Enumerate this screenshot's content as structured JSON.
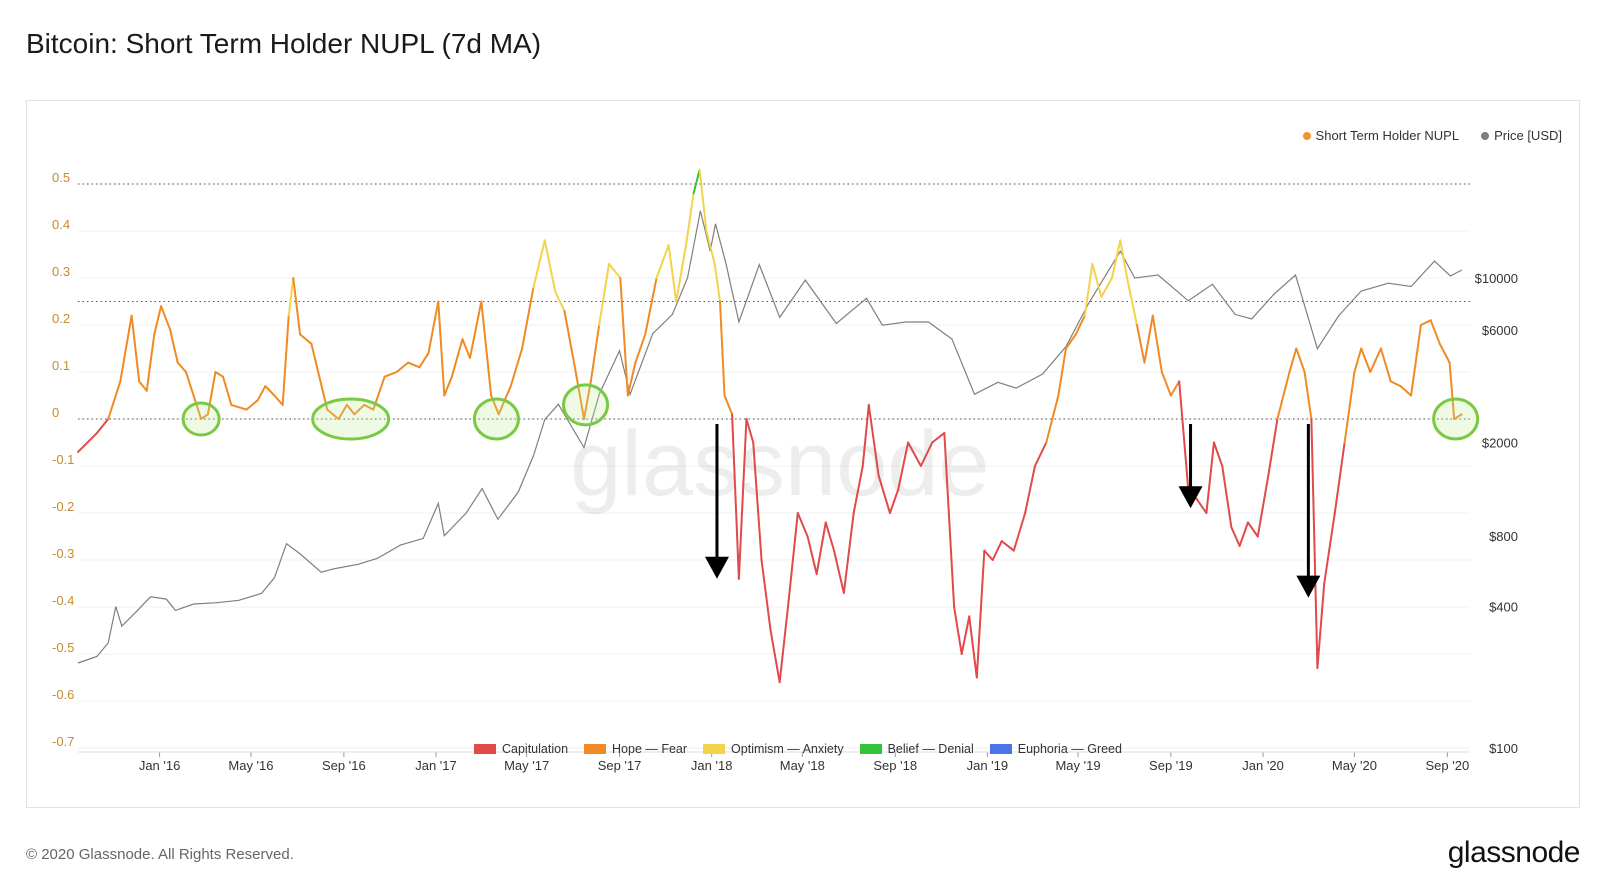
{
  "title": "Bitcoin: Short Term Holder NUPL (7d MA)",
  "footer": {
    "copyright": "© 2020 Glassnode. All Rights Reserved.",
    "brand": "glassnode"
  },
  "watermark": "glassnode",
  "legend_top": [
    {
      "label": "Short Term Holder NUPL",
      "color": "#f0932b"
    },
    {
      "label": "Price [USD]",
      "color": "#7f7f7f"
    }
  ],
  "legend_bottom": [
    {
      "label": "Capitulation",
      "color": "#e04a4a"
    },
    {
      "label": "Hope — Fear",
      "color": "#f08a24"
    },
    {
      "label": "Optimism — Anxiety",
      "color": "#f2d44c"
    },
    {
      "label": "Belief — Denial",
      "color": "#33c23a"
    },
    {
      "label": "Euphoria — Greed",
      "color": "#4a74e8"
    }
  ],
  "chart_data": {
    "type": "line",
    "x_ticks": [
      "Jan '16",
      "May '16",
      "Sep '16",
      "Jan '17",
      "May '17",
      "Sep '17",
      "Jan '18",
      "May '18",
      "Sep '18",
      "Jan '19",
      "May '19",
      "Sep '19",
      "Jan '20",
      "May '20",
      "Sep '20"
    ],
    "y_left_ticks": [
      "0.5",
      "0.4",
      "0.3",
      "0.2",
      "0.1",
      "0",
      "-0.1",
      "-0.2",
      "-0.3",
      "-0.4",
      "-0.5",
      "-0.6",
      "-0.7"
    ],
    "y_left_range": [
      -0.7,
      0.5
    ],
    "y_right_ticks": [
      "$10000",
      "$6000",
      "$2000",
      "$800",
      "$400",
      "$100"
    ],
    "y_right_scale": "log",
    "reference_lines": [
      0.5,
      0.25,
      0
    ],
    "x_range": [
      "2015-09-15",
      "2020-10-01"
    ],
    "series": [
      {
        "name": "Short Term Holder NUPL",
        "color_by_zone": true,
        "points": [
          [
            "2015-09-15",
            -0.07
          ],
          [
            "2015-10-10",
            -0.03
          ],
          [
            "2015-10-25",
            0.0
          ],
          [
            "2015-11-10",
            0.08
          ],
          [
            "2015-11-25",
            0.22
          ],
          [
            "2015-12-05",
            0.08
          ],
          [
            "2015-12-15",
            0.06
          ],
          [
            "2015-12-25",
            0.18
          ],
          [
            "2016-01-03",
            0.24
          ],
          [
            "2016-01-15",
            0.19
          ],
          [
            "2016-01-25",
            0.12
          ],
          [
            "2016-02-05",
            0.1
          ],
          [
            "2016-02-15",
            0.05
          ],
          [
            "2016-02-25",
            0.0
          ],
          [
            "2016-03-05",
            0.01
          ],
          [
            "2016-03-15",
            0.1
          ],
          [
            "2016-03-25",
            0.09
          ],
          [
            "2016-04-05",
            0.03
          ],
          [
            "2016-04-25",
            0.02
          ],
          [
            "2016-05-10",
            0.04
          ],
          [
            "2016-05-20",
            0.07
          ],
          [
            "2016-06-01",
            0.05
          ],
          [
            "2016-06-12",
            0.03
          ],
          [
            "2016-06-20",
            0.22
          ],
          [
            "2016-06-26",
            0.3
          ],
          [
            "2016-07-05",
            0.18
          ],
          [
            "2016-07-20",
            0.16
          ],
          [
            "2016-08-01",
            0.08
          ],
          [
            "2016-08-10",
            0.02
          ],
          [
            "2016-08-25",
            0.0
          ],
          [
            "2016-09-05",
            0.03
          ],
          [
            "2016-09-15",
            0.01
          ],
          [
            "2016-09-28",
            0.03
          ],
          [
            "2016-10-10",
            0.02
          ],
          [
            "2016-10-25",
            0.09
          ],
          [
            "2016-11-10",
            0.1
          ],
          [
            "2016-11-25",
            0.12
          ],
          [
            "2016-12-10",
            0.11
          ],
          [
            "2016-12-22",
            0.14
          ],
          [
            "2017-01-04",
            0.25
          ],
          [
            "2017-01-12",
            0.05
          ],
          [
            "2017-01-22",
            0.09
          ],
          [
            "2017-02-05",
            0.17
          ],
          [
            "2017-02-15",
            0.13
          ],
          [
            "2017-03-02",
            0.25
          ],
          [
            "2017-03-15",
            0.05
          ],
          [
            "2017-03-25",
            0.01
          ],
          [
            "2017-04-10",
            0.07
          ],
          [
            "2017-04-25",
            0.15
          ],
          [
            "2017-05-10",
            0.28
          ],
          [
            "2017-05-25",
            0.38
          ],
          [
            "2017-06-08",
            0.27
          ],
          [
            "2017-06-20",
            0.23
          ],
          [
            "2017-07-05",
            0.1
          ],
          [
            "2017-07-16",
            0.0
          ],
          [
            "2017-07-25",
            0.08
          ],
          [
            "2017-08-05",
            0.2
          ],
          [
            "2017-08-18",
            0.33
          ],
          [
            "2017-09-02",
            0.3
          ],
          [
            "2017-09-12",
            0.05
          ],
          [
            "2017-09-22",
            0.12
          ],
          [
            "2017-10-05",
            0.18
          ],
          [
            "2017-10-20",
            0.3
          ],
          [
            "2017-11-05",
            0.37
          ],
          [
            "2017-11-15",
            0.25
          ],
          [
            "2017-11-28",
            0.37
          ],
          [
            "2017-12-08",
            0.48
          ],
          [
            "2017-12-16",
            0.53
          ],
          [
            "2017-12-25",
            0.4
          ],
          [
            "2018-01-05",
            0.33
          ],
          [
            "2018-01-12",
            0.25
          ],
          [
            "2018-01-18",
            0.05
          ],
          [
            "2018-01-28",
            0.01
          ],
          [
            "2018-02-06",
            -0.34
          ],
          [
            "2018-02-16",
            0.0
          ],
          [
            "2018-02-25",
            -0.05
          ],
          [
            "2018-03-08",
            -0.3
          ],
          [
            "2018-03-20",
            -0.45
          ],
          [
            "2018-04-01",
            -0.56
          ],
          [
            "2018-04-12",
            -0.4
          ],
          [
            "2018-04-25",
            -0.2
          ],
          [
            "2018-05-08",
            -0.25
          ],
          [
            "2018-05-20",
            -0.33
          ],
          [
            "2018-06-01",
            -0.22
          ],
          [
            "2018-06-12",
            -0.28
          ],
          [
            "2018-06-25",
            -0.37
          ],
          [
            "2018-07-08",
            -0.2
          ],
          [
            "2018-07-20",
            -0.1
          ],
          [
            "2018-07-28",
            0.03
          ],
          [
            "2018-08-10",
            -0.12
          ],
          [
            "2018-08-25",
            -0.2
          ],
          [
            "2018-09-05",
            -0.15
          ],
          [
            "2018-09-18",
            -0.05
          ],
          [
            "2018-10-05",
            -0.1
          ],
          [
            "2018-10-20",
            -0.05
          ],
          [
            "2018-11-05",
            -0.03
          ],
          [
            "2018-11-18",
            -0.4
          ],
          [
            "2018-11-28",
            -0.5
          ],
          [
            "2018-12-08",
            -0.42
          ],
          [
            "2018-12-18",
            -0.55
          ],
          [
            "2018-12-28",
            -0.28
          ],
          [
            "2019-01-08",
            -0.3
          ],
          [
            "2019-01-20",
            -0.26
          ],
          [
            "2019-02-05",
            -0.28
          ],
          [
            "2019-02-20",
            -0.2
          ],
          [
            "2019-03-05",
            -0.1
          ],
          [
            "2019-03-20",
            -0.05
          ],
          [
            "2019-04-05",
            0.05
          ],
          [
            "2019-04-15",
            0.15
          ],
          [
            "2019-04-28",
            0.18
          ],
          [
            "2019-05-10",
            0.22
          ],
          [
            "2019-05-20",
            0.33
          ],
          [
            "2019-06-01",
            0.26
          ],
          [
            "2019-06-15",
            0.3
          ],
          [
            "2019-06-26",
            0.38
          ],
          [
            "2019-07-05",
            0.3
          ],
          [
            "2019-07-18",
            0.2
          ],
          [
            "2019-07-28",
            0.12
          ],
          [
            "2019-08-08",
            0.22
          ],
          [
            "2019-08-20",
            0.1
          ],
          [
            "2019-09-01",
            0.05
          ],
          [
            "2019-09-12",
            0.08
          ],
          [
            "2019-09-24",
            -0.15
          ],
          [
            "2019-10-05",
            -0.17
          ],
          [
            "2019-10-18",
            -0.2
          ],
          [
            "2019-10-28",
            -0.05
          ],
          [
            "2019-11-08",
            -0.1
          ],
          [
            "2019-11-20",
            -0.23
          ],
          [
            "2019-12-01",
            -0.27
          ],
          [
            "2019-12-12",
            -0.22
          ],
          [
            "2019-12-25",
            -0.25
          ],
          [
            "2020-01-08",
            -0.12
          ],
          [
            "2020-01-20",
            0.0
          ],
          [
            "2020-02-05",
            0.1
          ],
          [
            "2020-02-14",
            0.15
          ],
          [
            "2020-02-25",
            0.1
          ],
          [
            "2020-03-05",
            0.0
          ],
          [
            "2020-03-13",
            -0.53
          ],
          [
            "2020-03-22",
            -0.35
          ],
          [
            "2020-04-05",
            -0.2
          ],
          [
            "2020-04-18",
            -0.05
          ],
          [
            "2020-05-01",
            0.1
          ],
          [
            "2020-05-10",
            0.15
          ],
          [
            "2020-05-22",
            0.1
          ],
          [
            "2020-06-05",
            0.15
          ],
          [
            "2020-06-18",
            0.08
          ],
          [
            "2020-07-01",
            0.07
          ],
          [
            "2020-07-15",
            0.05
          ],
          [
            "2020-07-28",
            0.2
          ],
          [
            "2020-08-10",
            0.21
          ],
          [
            "2020-08-22",
            0.16
          ],
          [
            "2020-09-04",
            0.12
          ],
          [
            "2020-09-10",
            0.0
          ],
          [
            "2020-09-20",
            0.01
          ]
        ]
      },
      {
        "name": "Price [USD]",
        "color": "#7f7f7f",
        "points": [
          [
            "2015-09-15",
            230
          ],
          [
            "2015-10-10",
            245
          ],
          [
            "2015-10-25",
            280
          ],
          [
            "2015-11-04",
            400
          ],
          [
            "2015-11-12",
            330
          ],
          [
            "2015-12-01",
            380
          ],
          [
            "2015-12-20",
            440
          ],
          [
            "2016-01-10",
            430
          ],
          [
            "2016-01-22",
            385
          ],
          [
            "2016-02-15",
            410
          ],
          [
            "2016-03-15",
            415
          ],
          [
            "2016-04-15",
            425
          ],
          [
            "2016-05-15",
            455
          ],
          [
            "2016-06-01",
            530
          ],
          [
            "2016-06-17",
            740
          ],
          [
            "2016-07-05",
            670
          ],
          [
            "2016-08-02",
            560
          ],
          [
            "2016-08-20",
            580
          ],
          [
            "2016-09-20",
            605
          ],
          [
            "2016-10-15",
            640
          ],
          [
            "2016-11-15",
            730
          ],
          [
            "2016-12-15",
            780
          ],
          [
            "2017-01-04",
            1100
          ],
          [
            "2017-01-12",
            800
          ],
          [
            "2017-02-10",
            1000
          ],
          [
            "2017-03-03",
            1270
          ],
          [
            "2017-03-24",
            940
          ],
          [
            "2017-04-20",
            1230
          ],
          [
            "2017-05-10",
            1750
          ],
          [
            "2017-05-25",
            2500
          ],
          [
            "2017-06-12",
            2900
          ],
          [
            "2017-07-16",
            1900
          ],
          [
            "2017-08-05",
            3200
          ],
          [
            "2017-09-01",
            4900
          ],
          [
            "2017-09-15",
            3200
          ],
          [
            "2017-10-15",
            5800
          ],
          [
            "2017-11-10",
            7000
          ],
          [
            "2017-11-30",
            10000
          ],
          [
            "2017-12-17",
            19300
          ],
          [
            "2017-12-30",
            13000
          ],
          [
            "2018-01-06",
            17000
          ],
          [
            "2018-01-20",
            11500
          ],
          [
            "2018-02-06",
            6500
          ],
          [
            "2018-03-05",
            11400
          ],
          [
            "2018-04-01",
            6800
          ],
          [
            "2018-05-05",
            9800
          ],
          [
            "2018-06-15",
            6400
          ],
          [
            "2018-07-25",
            8200
          ],
          [
            "2018-08-15",
            6300
          ],
          [
            "2018-09-15",
            6500
          ],
          [
            "2018-10-15",
            6500
          ],
          [
            "2018-11-15",
            5500
          ],
          [
            "2018-12-15",
            3200
          ],
          [
            "2019-01-15",
            3600
          ],
          [
            "2019-02-08",
            3400
          ],
          [
            "2019-03-15",
            3900
          ],
          [
            "2019-04-15",
            5100
          ],
          [
            "2019-05-15",
            7800
          ],
          [
            "2019-06-26",
            13000
          ],
          [
            "2019-07-15",
            10000
          ],
          [
            "2019-08-15",
            10300
          ],
          [
            "2019-09-24",
            8000
          ],
          [
            "2019-10-26",
            9400
          ],
          [
            "2019-11-25",
            7000
          ],
          [
            "2019-12-17",
            6700
          ],
          [
            "2020-01-15",
            8500
          ],
          [
            "2020-02-13",
            10300
          ],
          [
            "2020-03-13",
            5000
          ],
          [
            "2020-04-10",
            6900
          ],
          [
            "2020-05-10",
            8800
          ],
          [
            "2020-06-15",
            9500
          ],
          [
            "2020-07-15",
            9200
          ],
          [
            "2020-08-15",
            11800
          ],
          [
            "2020-09-05",
            10200
          ],
          [
            "2020-09-20",
            10800
          ]
        ]
      }
    ]
  }
}
